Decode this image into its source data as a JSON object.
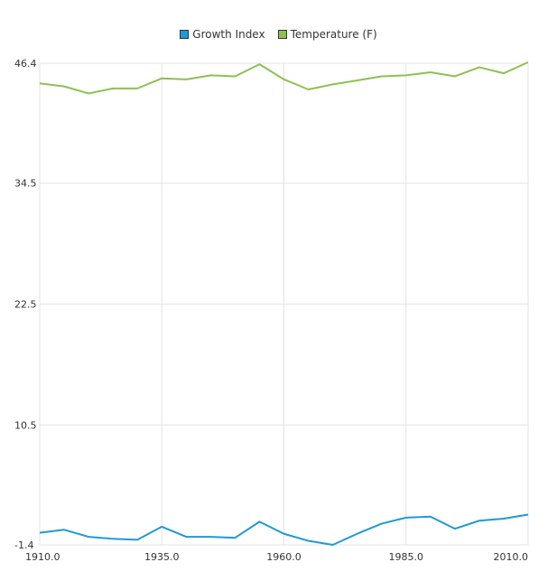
{
  "chart_data": {
    "type": "line",
    "legend_position": "top-center",
    "grid": true,
    "xlim": [
      1910,
      2010
    ],
    "ylim": [
      -1.4,
      46.4
    ],
    "x_ticks": [
      "1910.0",
      "1935.0",
      "1960.0",
      "1985.0",
      "2010.0"
    ],
    "y_ticks": [
      "-1.4",
      "10.5",
      "22.5",
      "34.5",
      "46.4"
    ],
    "x": [
      1910,
      1915,
      1920,
      1925,
      1930,
      1935,
      1940,
      1945,
      1950,
      1955,
      1960,
      1965,
      1970,
      1975,
      1980,
      1985,
      1990,
      1995,
      2000,
      2005,
      2010
    ],
    "series": [
      {
        "name": "Growth Index",
        "color": "#1f9ad6",
        "values": [
          -0.2,
          0.1,
          -0.6,
          -0.8,
          -0.9,
          0.4,
          -0.6,
          -0.6,
          -0.7,
          0.9,
          -0.3,
          -1.0,
          -1.4,
          -0.3,
          0.7,
          1.3,
          1.4,
          0.2,
          1.0,
          1.2,
          1.6
        ]
      },
      {
        "name": "Temperature (F)",
        "color": "#8cc152",
        "values": [
          44.4,
          44.1,
          43.4,
          43.9,
          43.9,
          44.9,
          44.8,
          45.2,
          45.1,
          46.3,
          44.8,
          43.8,
          44.3,
          44.7,
          45.1,
          45.2,
          45.5,
          45.1,
          46.0,
          45.4,
          46.5
        ]
      }
    ]
  }
}
